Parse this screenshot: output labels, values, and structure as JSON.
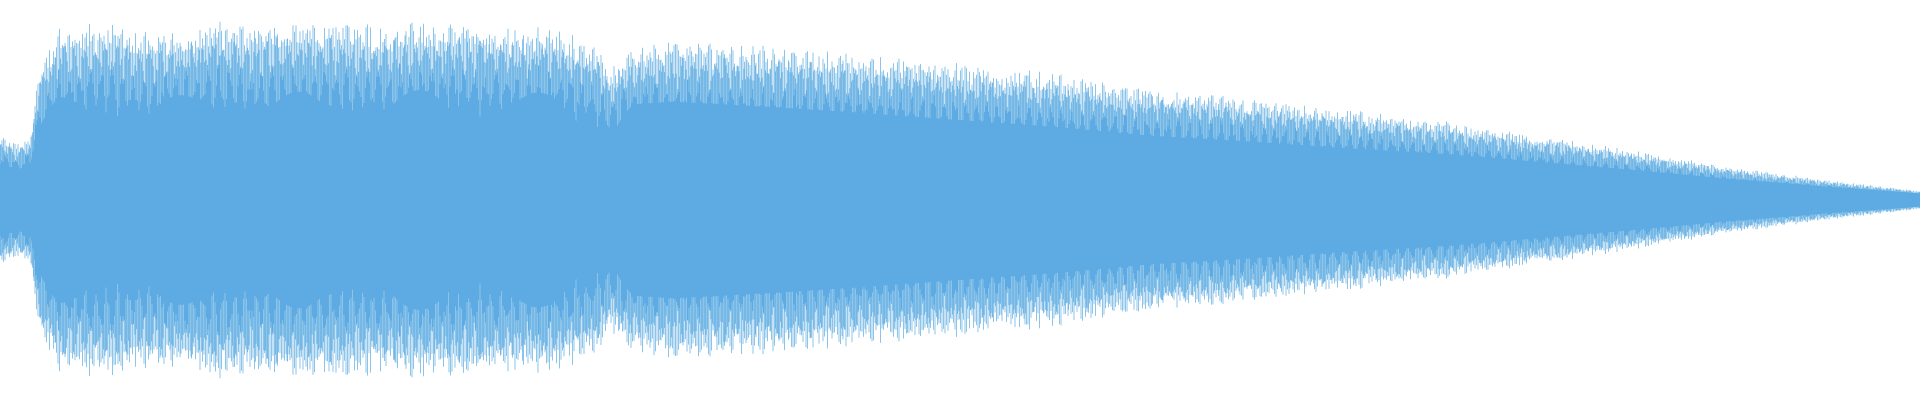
{
  "waveform": {
    "icon": "audio-waveform",
    "color": "#5DABE2",
    "background": "#FFFFFF",
    "channels": 1,
    "envelope": {
      "time": [
        0.0,
        0.01,
        0.016,
        0.02,
        0.03,
        0.05,
        0.08,
        0.11,
        0.14,
        0.17,
        0.2,
        0.23,
        0.26,
        0.29,
        0.31,
        0.318,
        0.325,
        0.35,
        0.4,
        0.45,
        0.5,
        0.55,
        0.6,
        0.65,
        0.7,
        0.75,
        0.8,
        0.85,
        0.9,
        0.95,
        1.0
      ],
      "peak": [
        0.35,
        0.3,
        0.36,
        0.7,
        0.92,
        0.96,
        0.9,
        0.97,
        0.95,
        0.96,
        0.95,
        0.97,
        0.94,
        0.93,
        0.85,
        0.7,
        0.82,
        0.86,
        0.83,
        0.79,
        0.74,
        0.68,
        0.6,
        0.55,
        0.49,
        0.43,
        0.35,
        0.27,
        0.18,
        0.11,
        0.05
      ]
    },
    "inner_density": {
      "time": [
        0.0,
        0.02,
        0.03,
        0.31,
        0.318,
        0.33,
        0.5,
        0.7,
        0.85,
        1.0
      ],
      "value": [
        0.55,
        0.55,
        0.6,
        0.62,
        0.48,
        0.62,
        0.58,
        0.57,
        0.6,
        0.7
      ]
    },
    "modulation": {
      "start": 0.03,
      "end": 0.318,
      "periods": 4.6,
      "depth": 0.55
    },
    "cycles": 1340
  }
}
